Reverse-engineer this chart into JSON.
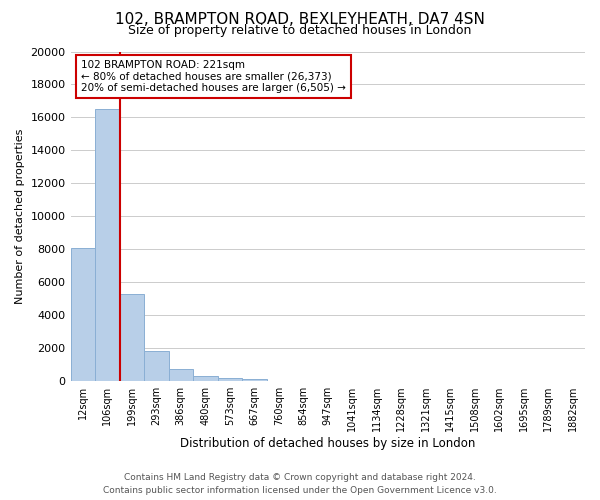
{
  "title": "102, BRAMPTON ROAD, BEXLEYHEATH, DA7 4SN",
  "subtitle": "Size of property relative to detached houses in London",
  "xlabel": "Distribution of detached houses by size in London",
  "ylabel": "Number of detached properties",
  "bar_values": [
    8100,
    16500,
    5300,
    1800,
    750,
    300,
    200,
    150,
    0,
    0,
    0,
    0,
    0,
    0,
    0,
    0,
    0,
    0,
    0,
    0,
    0
  ],
  "bar_labels": [
    "12sqm",
    "106sqm",
    "199sqm",
    "293sqm",
    "386sqm",
    "480sqm",
    "573sqm",
    "667sqm",
    "760sqm",
    "854sqm",
    "947sqm",
    "1041sqm",
    "1134sqm",
    "1228sqm",
    "1321sqm",
    "1415sqm",
    "1508sqm",
    "1602sqm",
    "1695sqm",
    "1789sqm",
    "1882sqm"
  ],
  "bar_color": "#b8cfe8",
  "bar_edge_color": "#8aafd4",
  "vline_x_index": 2,
  "vline_color": "#cc0000",
  "annotation_title": "102 BRAMPTON ROAD: 221sqm",
  "annotation_line1": "← 80% of detached houses are smaller (26,373)",
  "annotation_line2": "20% of semi-detached houses are larger (6,505) →",
  "annotation_box_color": "#ffffff",
  "annotation_box_edge": "#cc0000",
  "ylim": [
    0,
    20000
  ],
  "yticks": [
    0,
    2000,
    4000,
    6000,
    8000,
    10000,
    12000,
    14000,
    16000,
    18000,
    20000
  ],
  "footer_line1": "Contains HM Land Registry data © Crown copyright and database right 2024.",
  "footer_line2": "Contains public sector information licensed under the Open Government Licence v3.0.",
  "background_color": "#ffffff",
  "grid_color": "#cccccc"
}
